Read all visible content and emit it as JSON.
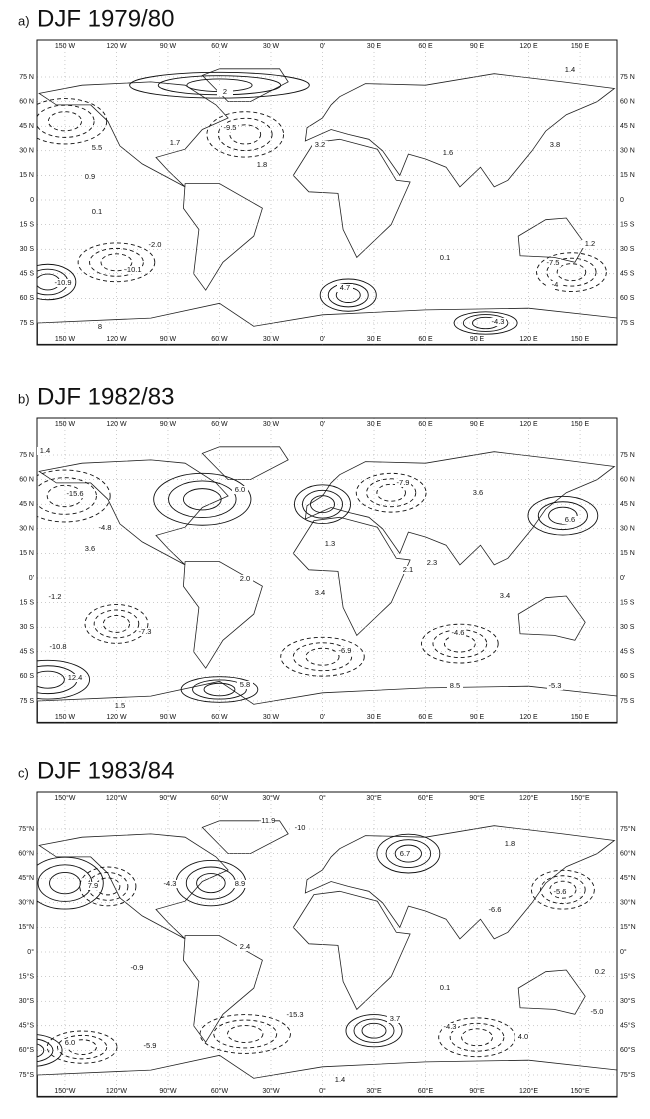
{
  "panels": [
    {
      "label": "a)",
      "title": "DJF 1979/80",
      "lon_labels_top": [
        "150 W",
        "120 W",
        "90 W",
        "60 W",
        "30 W",
        "0'",
        "30 E",
        "60 E",
        "90 E",
        "120 E",
        "150 E"
      ],
      "lon_labels_bottom": [
        "150 W",
        "120 W",
        "90 W",
        "60 W",
        "30 W",
        "0'",
        "30 E",
        "60 E",
        "90 E",
        "120 E",
        "150 E"
      ],
      "lat_labels_left": [
        "75 N",
        "60 N",
        "45 N",
        "30 N",
        "15 N",
        "0",
        "15 S",
        "30 S",
        "45 S",
        "60 S",
        "75 S"
      ],
      "lat_labels_right": [
        "75 N",
        "60 N",
        "45 N",
        "30 N",
        "15 N",
        "0",
        "15 S",
        "30 S",
        "45 S",
        "60 S",
        "75 S"
      ],
      "contour_labels": [
        "2",
        "1.4",
        "5.5",
        "-9.5",
        "1.7",
        "3.2",
        "1.6",
        "3.8",
        "1.8",
        "0.9",
        "0.1",
        "-2.0",
        "-10.1",
        "-10.9",
        "4.7",
        "0.1",
        "-7.5",
        "-4",
        "1.2",
        "-4.3",
        "8"
      ]
    },
    {
      "label": "b)",
      "title": "DJF 1982/83",
      "lon_labels_top": [
        "150 W",
        "120 W",
        "90 W",
        "60 W",
        "30 W",
        "0'",
        "30 E",
        "60 E",
        "90 E",
        "120 E",
        "150 E"
      ],
      "lon_labels_bottom": [
        "150 W",
        "120 W",
        "90 W",
        "60 W",
        "30 W",
        "0'",
        "30 E",
        "60 E",
        "90 E",
        "120 E",
        "150 E"
      ],
      "lat_labels_left": [
        "75 N",
        "60 N",
        "45 N",
        "30 N",
        "15 N",
        "0'",
        "15 S",
        "30 S",
        "45 S",
        "60 S",
        "75 S"
      ],
      "lat_labels_right": [
        "75 N",
        "60 N",
        "45 N",
        "30 N",
        "15 N",
        "0'",
        "15 S",
        "30 S",
        "45 S",
        "60 S",
        "75 S"
      ],
      "contour_labels": [
        "1.4",
        "-15.6",
        "-4.8",
        "3.6",
        "-1.2",
        "-7.3",
        "-10.8",
        "12.4",
        "1.5",
        "5.8",
        "2.0",
        "1.3",
        "3.4",
        "-6.9",
        "-4.6",
        "-7.9",
        "3.6",
        "6.6",
        "2.3",
        "2.1",
        "3.4",
        "8.5",
        "-5.3",
        "6.0"
      ]
    },
    {
      "label": "c)",
      "title": "DJF 1983/84",
      "lon_labels_top": [
        "150°W",
        "120°W",
        "90°W",
        "60°W",
        "30°W",
        "0°",
        "30°E",
        "60°E",
        "90°E",
        "120°E",
        "150°E"
      ],
      "lon_labels_bottom": [
        "150°W",
        "120°W",
        "90°W",
        "60°W",
        "30°W",
        "0°",
        "30°E",
        "60°E",
        "90°E",
        "120°E",
        "150°E"
      ],
      "lat_labels_left": [
        "75°N",
        "60°N",
        "45°N",
        "30°N",
        "15°N",
        "0°",
        "15°S",
        "30°S",
        "45°S",
        "60°S",
        "75°S"
      ],
      "lat_labels_right": [
        "75°N",
        "60°N",
        "45°N",
        "30°N",
        "15°N",
        "0°",
        "15°S",
        "30°S",
        "45°S",
        "60°S",
        "75°S"
      ],
      "contour_labels": [
        "7.9",
        "-4.3",
        "8.9",
        "-11.9",
        "-10",
        "6.7",
        "1.8",
        "-5.6",
        "-6.6",
        "2.4",
        "-0.9",
        "-15.3",
        "3.7",
        "-4.3",
        "4.0",
        "6.0",
        "-5.9",
        "0.1",
        "-5.0",
        "0.2",
        "1.4"
      ]
    }
  ]
}
